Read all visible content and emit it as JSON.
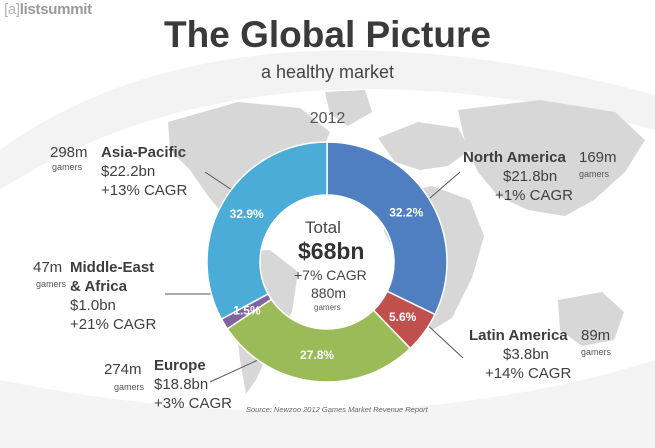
{
  "header": {
    "logo_bracket": "[a]",
    "logo_text": "listsummit",
    "title": "The Global Picture",
    "subtitle": "a healthy market",
    "year": "2012"
  },
  "colors": {
    "north_america": "#4f7fc1",
    "latin_america": "#c0504d",
    "europe": "#9bbb59",
    "middle_east_africa": "#8064a2",
    "asia_pacific": "#4badd7"
  },
  "center": {
    "label": "Total",
    "value": "$68bn",
    "growth": "+7% CAGR",
    "gamers": "880m",
    "gamers_label": "gamers"
  },
  "regions": {
    "asia_pacific": {
      "name": "Asia-Pacific",
      "revenue": "$22.2bn",
      "growth": "+13% CAGR",
      "gamers": "298m",
      "gamers_label": "gamers"
    },
    "north_america": {
      "name": "North America",
      "revenue": "$21.8bn",
      "growth": "+1% CAGR",
      "gamers": "169m",
      "gamers_label": "gamers"
    },
    "middle_east_africa": {
      "name_line1": "Middle-East",
      "name_line2": "& Africa",
      "revenue": "$1.0bn",
      "growth": "+21% CAGR",
      "gamers": "47m",
      "gamers_label": "gamers"
    },
    "latin_america": {
      "name": "Latin America",
      "revenue": "$3.8bn",
      "growth": "+14% CAGR",
      "gamers": "89m",
      "gamers_label": "gamers"
    },
    "europe": {
      "name": "Europe",
      "revenue": "$18.8bn",
      "growth": "+3% CAGR",
      "gamers": "274m",
      "gamers_label": "gamers"
    }
  },
  "source": "Source: Newzoo 2012 Games Market Revenue Report",
  "chart_data": {
    "type": "pie",
    "title": "The Global Picture",
    "subtitle": "a healthy market",
    "categories": [
      "North America",
      "Latin America",
      "Europe",
      "Middle-East & Africa",
      "Asia-Pacific"
    ],
    "values": [
      32.2,
      5.6,
      27.8,
      1.5,
      32.9
    ],
    "labels": [
      "32.2%",
      "5.6%",
      "27.8%",
      "1.5%",
      "32.9%"
    ],
    "colors": [
      "#4f7fc1",
      "#c0504d",
      "#9bbb59",
      "#8064a2",
      "#4badd7"
    ],
    "donut": true,
    "legend": "none"
  }
}
